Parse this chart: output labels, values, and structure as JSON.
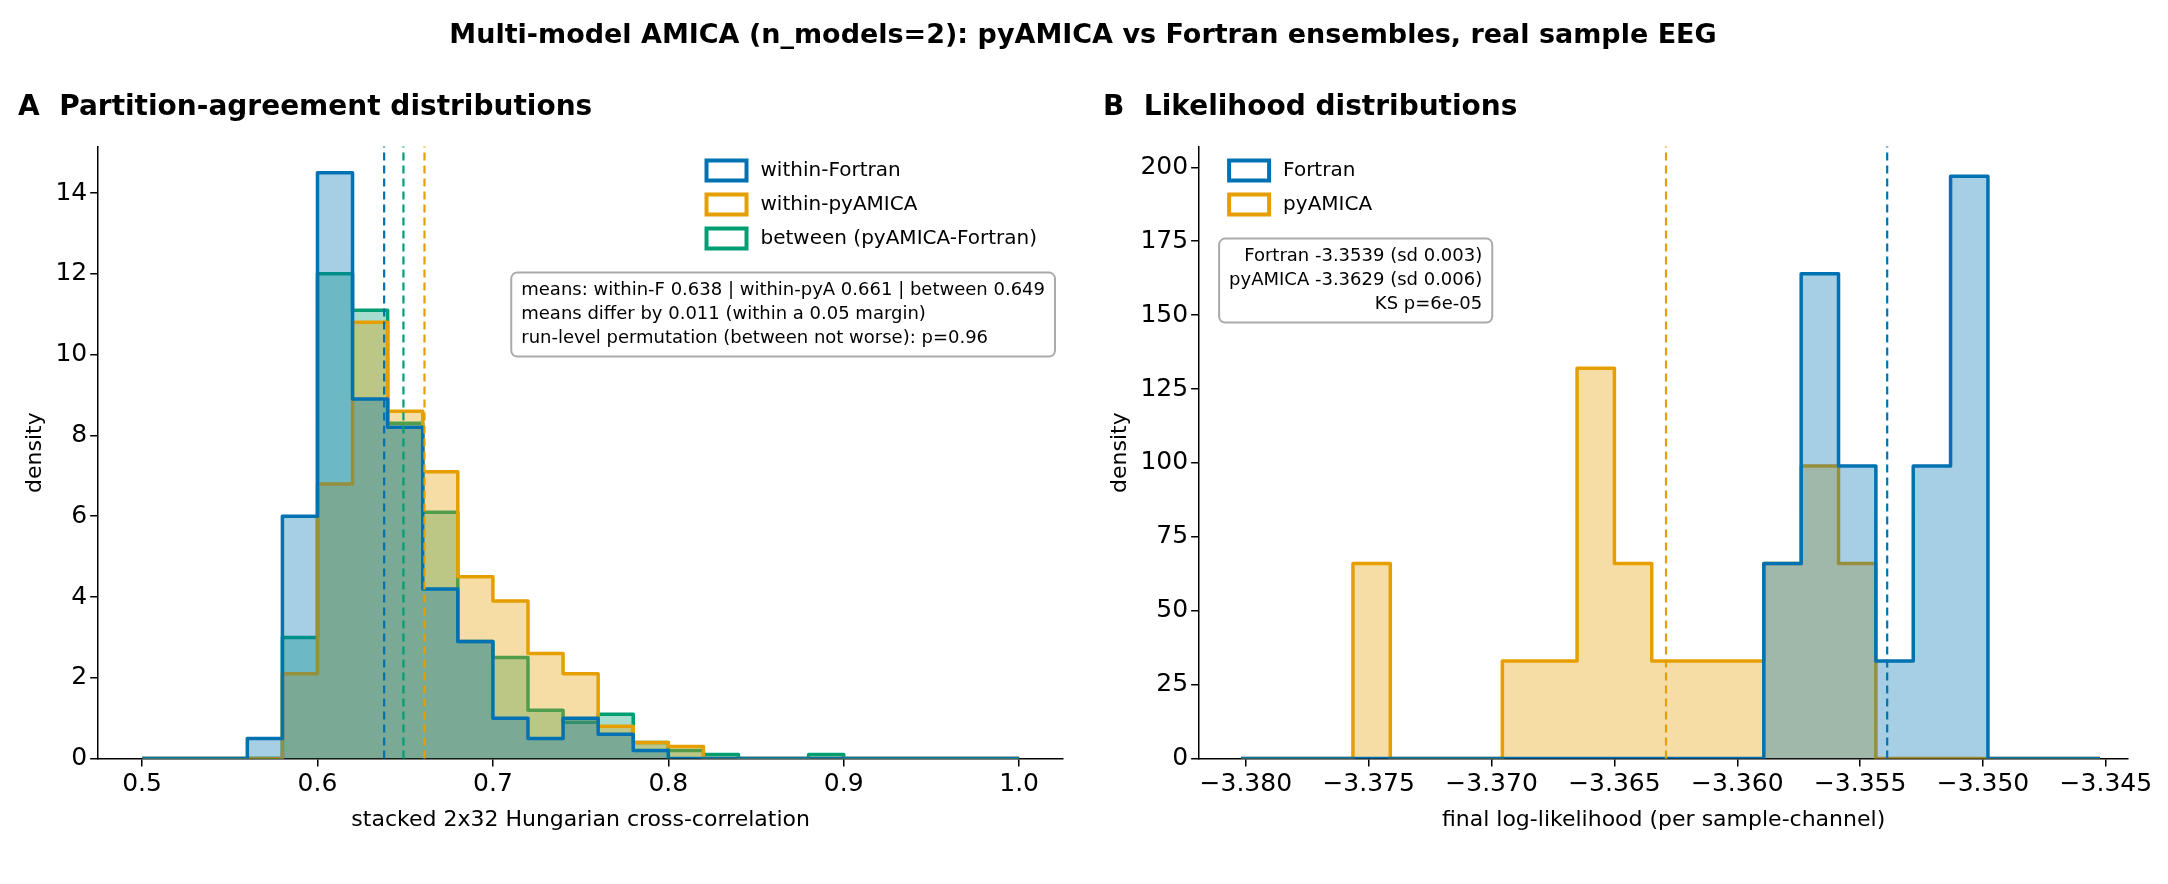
{
  "chart_data": [
    {
      "type": "histogram",
      "title": "A  Partition-agreement distributions",
      "xlabel": "stacked 2x32 Hungarian cross-correlation",
      "ylabel": "density",
      "bins": [
        0.5,
        0.52,
        0.54,
        0.56,
        0.58,
        0.6,
        0.62,
        0.64,
        0.66,
        0.68,
        0.7,
        0.72,
        0.74,
        0.76,
        0.78,
        0.8,
        0.82,
        0.84,
        0.86,
        0.88,
        0.9,
        0.92,
        0.94,
        0.96,
        0.98,
        1.0
      ],
      "series": [
        {
          "name": "within-Fortran",
          "color": "#0072b2",
          "values": [
            0,
            0,
            0,
            0.5,
            6.0,
            14.5,
            8.9,
            8.2,
            4.2,
            2.9,
            1.0,
            0.5,
            1.0,
            0.6,
            0.2,
            0,
            0,
            0,
            0,
            0,
            0,
            0,
            0,
            0,
            0
          ]
        },
        {
          "name": "within-pyAMICA",
          "color": "#e69f00",
          "values": [
            0,
            0,
            0,
            0,
            2.1,
            6.8,
            10.8,
            8.6,
            7.1,
            4.5,
            3.9,
            2.6,
            2.1,
            0.8,
            0.4,
            0.3,
            0,
            0,
            0,
            0,
            0,
            0,
            0,
            0,
            0
          ]
        },
        {
          "name": "between (pyAMICA-Fortran)",
          "color": "#009e73",
          "values": [
            0,
            0,
            0,
            0,
            3.0,
            12.0,
            11.1,
            8.3,
            6.1,
            2.9,
            2.5,
            1.2,
            0.9,
            1.1,
            0.4,
            0.2,
            0.1,
            0,
            0,
            0.1,
            0,
            0,
            0,
            0,
            0
          ]
        }
      ],
      "xlim": [
        0.475,
        1.025
      ],
      "xticks": [
        0.5,
        0.6,
        0.7,
        0.8,
        0.9,
        {
          "value": 1,
          "label": "1.0"
        }
      ],
      "ylim": [
        0,
        15.15
      ],
      "yticks": [
        0,
        2,
        4,
        6,
        8,
        10,
        12,
        14
      ],
      "ref_lines": [
        {
          "axis": "x",
          "value": 0.638,
          "color": "#0072b2",
          "line_style": "dashed"
        },
        {
          "axis": "x",
          "value": 0.661,
          "color": "#e69f00",
          "line_style": "dashed"
        },
        {
          "axis": "x",
          "value": 0.649,
          "color": "#009e73",
          "line_style": "dashed"
        }
      ],
      "legend": "top right",
      "annotations": [
        "Multi-model AMICA (n_models=2): pyAMICA vs Fortran ensembles, real sample EEG",
        "means: within-F 0.638 | within-pyA 0.661 | between 0.649\nmeans differ by 0.011 (within a 0.05 margin)\nrun-level permutation (between not worse): p=0.96"
      ]
    },
    {
      "type": "histogram",
      "title": "B  Likelihood distributions",
      "xlabel": "final log-likelihood (per sample-channel)",
      "ylabel": "density",
      "bins": [
        -3.3802,
        -3.37868,
        -3.37716,
        -3.37564,
        -3.37412,
        -3.3726,
        -3.37108,
        -3.36956,
        -3.36804,
        -3.36652,
        -3.365,
        -3.36348,
        -3.36196,
        -3.36044,
        -3.35892,
        -3.3574,
        -3.35588,
        -3.35436,
        -3.35284,
        -3.35132,
        -3.3498,
        -3.34828,
        -3.34676,
        -3.34524
      ],
      "series": [
        {
          "name": "Fortran",
          "color": "#0072b2",
          "values": [
            0,
            0,
            0,
            0,
            0,
            0,
            0,
            0,
            0,
            0,
            0,
            0,
            0,
            0,
            66,
            164,
            99,
            33,
            99,
            197,
            0,
            0,
            0
          ]
        },
        {
          "name": "pyAMICA",
          "color": "#e69f00",
          "values": [
            0,
            0,
            0,
            66,
            0,
            0,
            0,
            33,
            33,
            132,
            66,
            33,
            33,
            33,
            66,
            99,
            66,
            0,
            0,
            0,
            0,
            0,
            0
          ]
        }
      ],
      "xlim": [
        -3.3819,
        -3.3441
      ],
      "xticks": [
        {
          "value": -3.38,
          "label": "−3.380"
        },
        {
          "value": -3.375,
          "label": "−3.375"
        },
        {
          "value": -3.37,
          "label": "−3.370"
        },
        {
          "value": -3.365,
          "label": "−3.365"
        },
        {
          "value": -3.36,
          "label": "−3.360"
        },
        {
          "value": -3.355,
          "label": "−3.355"
        },
        {
          "value": -3.35,
          "label": "−3.350"
        },
        {
          "value": -3.345,
          "label": "−3.345"
        }
      ],
      "ylim": [
        0,
        207
      ],
      "yticks": [
        0,
        25,
        50,
        75,
        100,
        125,
        150,
        175,
        200
      ],
      "ref_lines": [
        {
          "axis": "x",
          "value": -3.3539,
          "color": "#0072b2",
          "line_style": "dashed"
        },
        {
          "axis": "x",
          "value": -3.3629,
          "color": "#e69f00",
          "line_style": "dashed"
        }
      ],
      "legend": "top left",
      "annotations": [
        "Fortran -3.3539 (sd 0.003)\npyAMICA -3.3629 (sd 0.006)\nKS p=6e-05"
      ]
    }
  ]
}
